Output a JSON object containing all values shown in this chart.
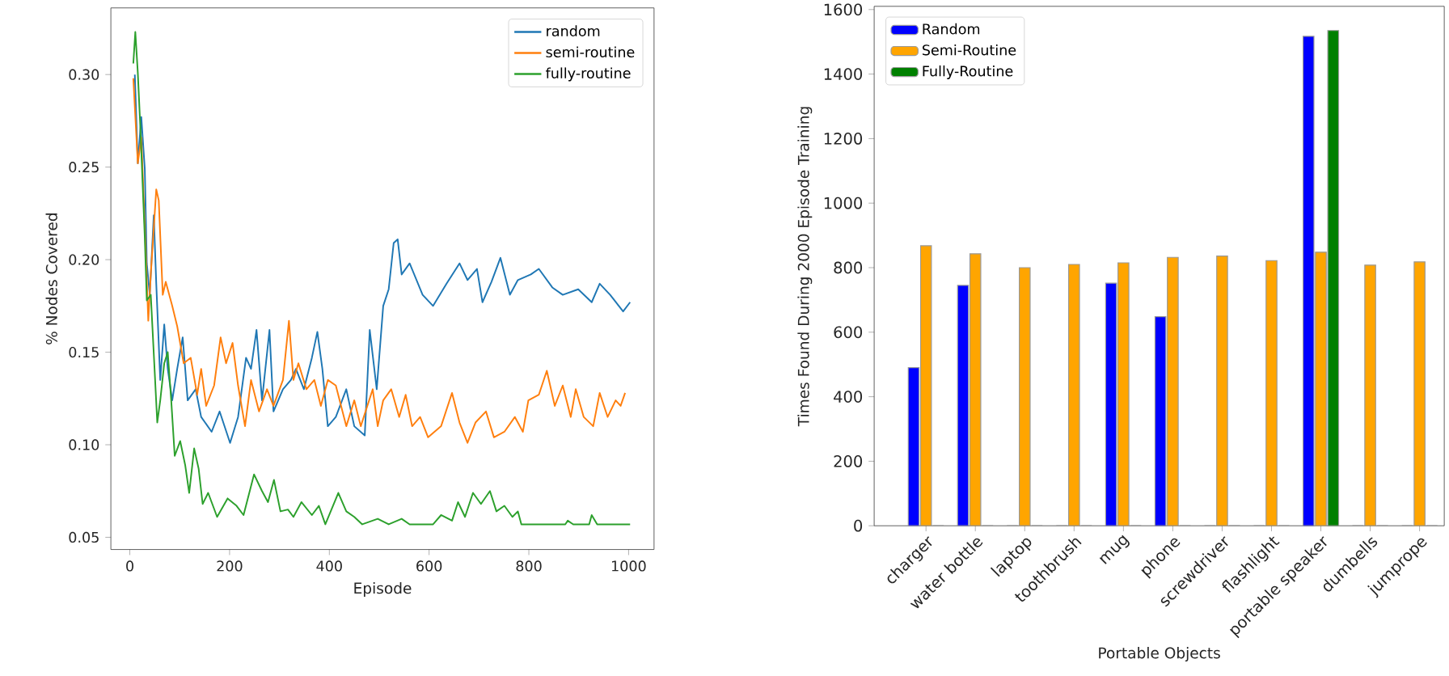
{
  "chart_data": [
    {
      "type": "line",
      "xlabel": "Episode",
      "ylabel": "% Nodes Covered",
      "xlim": [
        -38,
        1051
      ],
      "ylim": [
        0.0434,
        0.336
      ],
      "xticks": [
        0,
        200,
        400,
        600,
        800,
        1000
      ],
      "yticks": [
        0.05,
        {
          "value": 0.1,
          "label": "0.10"
        },
        0.15,
        {
          "value": 0.2,
          "label": "0.20"
        },
        0.25,
        {
          "value": 0.3,
          "label": "0.30"
        }
      ],
      "legend": "top right",
      "grid": false,
      "line_style": "solid",
      "series": [
        {
          "name": "random",
          "color": "#1f77b4",
          "x": [
            10,
            16,
            23,
            30,
            34,
            40,
            48,
            53,
            61,
            69,
            76,
            85,
            95,
            106,
            116,
            132,
            143,
            164,
            180,
            201,
            217,
            233,
            243,
            254,
            265,
            280,
            288,
            307,
            323,
            333,
            349,
            365,
            376,
            386,
            397,
            413,
            434,
            450,
            471,
            481,
            495,
            508,
            519,
            529,
            537,
            545,
            561,
            587,
            608,
            635,
            661,
            677,
            696,
            707,
            725,
            743,
            762,
            778,
            804,
            820,
            847,
            868,
            899,
            926,
            942,
            963,
            989,
            1003
          ],
          "values": [
            0.3,
            0.252,
            0.277,
            0.249,
            0.198,
            0.181,
            0.224,
            0.187,
            0.135,
            0.165,
            0.141,
            0.124,
            0.141,
            0.158,
            0.124,
            0.13,
            0.115,
            0.107,
            0.118,
            0.101,
            0.115,
            0.147,
            0.141,
            0.162,
            0.124,
            0.162,
            0.118,
            0.13,
            0.135,
            0.141,
            0.13,
            0.147,
            0.161,
            0.141,
            0.11,
            0.115,
            0.13,
            0.11,
            0.105,
            0.162,
            0.13,
            0.175,
            0.184,
            0.209,
            0.211,
            0.192,
            0.198,
            0.181,
            0.175,
            0.187,
            0.198,
            0.189,
            0.195,
            0.177,
            0.188,
            0.201,
            0.181,
            0.189,
            0.192,
            0.195,
            0.185,
            0.181,
            0.184,
            0.177,
            0.187,
            0.181,
            0.172,
            0.177
          ]
        },
        {
          "name": "semi-routine",
          "color": "#ff7f0e",
          "x": [
            7,
            16,
            23,
            30,
            37,
            42,
            53,
            58,
            66,
            72,
            85,
            95,
            108,
            122,
            135,
            143,
            153,
            169,
            182,
            193,
            206,
            217,
            231,
            243,
            259,
            275,
            288,
            307,
            319,
            328,
            338,
            354,
            370,
            383,
            397,
            413,
            434,
            450,
            463,
            487,
            497,
            508,
            524,
            540,
            553,
            566,
            582,
            598,
            624,
            646,
            661,
            677,
            693,
            714,
            730,
            751,
            772,
            788,
            799,
            820,
            836,
            852,
            868,
            884,
            894,
            910,
            929,
            942,
            958,
            974,
            984,
            993
          ],
          "values": [
            0.298,
            0.252,
            0.266,
            0.218,
            0.167,
            0.192,
            0.238,
            0.232,
            0.181,
            0.188,
            0.175,
            0.164,
            0.144,
            0.147,
            0.127,
            0.141,
            0.121,
            0.132,
            0.158,
            0.144,
            0.155,
            0.132,
            0.11,
            0.135,
            0.118,
            0.13,
            0.121,
            0.135,
            0.167,
            0.135,
            0.144,
            0.13,
            0.135,
            0.121,
            0.135,
            0.132,
            0.11,
            0.124,
            0.11,
            0.13,
            0.11,
            0.124,
            0.13,
            0.115,
            0.127,
            0.11,
            0.115,
            0.104,
            0.11,
            0.128,
            0.112,
            0.101,
            0.112,
            0.118,
            0.104,
            0.107,
            0.115,
            0.107,
            0.124,
            0.127,
            0.14,
            0.121,
            0.132,
            0.115,
            0.13,
            0.115,
            0.11,
            0.128,
            0.115,
            0.124,
            0.121,
            0.128
          ]
        },
        {
          "name": "fully-routine",
          "color": "#2ca02c",
          "x": [
            7,
            11,
            16,
            21,
            30,
            34,
            42,
            49,
            55,
            61,
            69,
            76,
            83,
            90,
            101,
            111,
            119,
            129,
            138,
            146,
            157,
            175,
            196,
            214,
            228,
            249,
            265,
            277,
            289,
            302,
            317,
            328,
            344,
            365,
            379,
            392,
            418,
            434,
            450,
            466,
            497,
            519,
            545,
            561,
            608,
            624,
            646,
            658,
            672,
            688,
            704,
            722,
            735,
            751,
            767,
            778,
            785,
            873,
            878,
            889,
            921,
            926,
            937,
            1003
          ],
          "values": [
            0.306,
            0.323,
            0.301,
            0.272,
            0.212,
            0.178,
            0.181,
            0.144,
            0.112,
            0.124,
            0.144,
            0.15,
            0.124,
            0.094,
            0.102,
            0.089,
            0.074,
            0.098,
            0.087,
            0.068,
            0.074,
            0.061,
            0.071,
            0.067,
            0.062,
            0.084,
            0.075,
            0.069,
            0.081,
            0.064,
            0.065,
            0.061,
            0.069,
            0.062,
            0.067,
            0.057,
            0.074,
            0.064,
            0.061,
            0.057,
            0.06,
            0.057,
            0.06,
            0.057,
            0.057,
            0.062,
            0.059,
            0.069,
            0.061,
            0.074,
            0.068,
            0.075,
            0.064,
            0.067,
            0.061,
            0.064,
            0.057,
            0.057,
            0.059,
            0.057,
            0.057,
            0.062,
            0.057,
            0.057
          ]
        }
      ]
    },
    {
      "type": "bar",
      "xlabel": "Portable Objects",
      "ylabel": "Times Found During 2000 Episode Training",
      "ylim": [
        0,
        1610
      ],
      "yticks": [
        0,
        200,
        400,
        600,
        800,
        1000,
        1200,
        1400,
        1600
      ],
      "legend": "top left",
      "grid": false,
      "categories": [
        "charger",
        "water bottle",
        "laptop",
        "toothbrush",
        "mug",
        "phone",
        "screwdriver",
        "flashlight",
        "portable speaker",
        "dumbells",
        "jumprope"
      ],
      "series": [
        {
          "name": "Random",
          "color": "#0000ff",
          "values": [
            490,
            745,
            0,
            0,
            752,
            648,
            0,
            0,
            1517,
            0,
            0
          ]
        },
        {
          "name": "Semi-Routine",
          "color": "#ffa500",
          "values": [
            868,
            843,
            800,
            810,
            815,
            832,
            836,
            822,
            848,
            808,
            818
          ]
        },
        {
          "name": "Fully-Routine",
          "color": "#008000",
          "values": [
            0,
            0,
            0,
            0,
            0,
            0,
            0,
            0,
            1535,
            0,
            0
          ]
        }
      ]
    }
  ]
}
